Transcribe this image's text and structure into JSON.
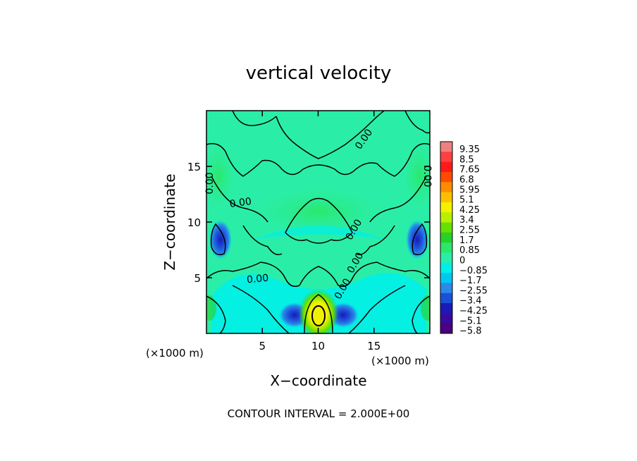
{
  "chart_data": {
    "type": "contour",
    "title": "vertical velocity",
    "xlabel": "X−coordinate",
    "ylabel": "Z−coordinate",
    "x_unit": "(×1000 m)",
    "y_unit": "(×1000 m)",
    "xlim": [
      0,
      20
    ],
    "ylim": [
      0,
      20
    ],
    "x_ticks": [
      "5",
      "10",
      "15"
    ],
    "y_ticks": [
      "5",
      "10",
      "15"
    ],
    "x_tick_values": [
      5,
      10,
      15
    ],
    "y_tick_values": [
      5,
      10,
      15
    ],
    "contour_interval_text": "CONTOUR INTERVAL = 2.000E+00",
    "contour_labels": [
      "0.00",
      "0.00",
      "0.00",
      "0.00",
      "0.00",
      "0.00",
      "0.00",
      "0.00"
    ],
    "colorbar": {
      "labels": [
        "9.35",
        "8.5",
        "7.65",
        "6.8",
        "5.95",
        "5.1",
        "4.25",
        "3.4",
        "2.55",
        "1.7",
        "0.85",
        "0",
        "−0.85",
        "−1.7",
        "−2.55",
        "−3.4",
        "−4.25",
        "−5.1",
        "−5.8"
      ],
      "colors": [
        "#f08080",
        "#ff4040",
        "#ff1a1a",
        "#ff4a00",
        "#ff8c00",
        "#ffbf00",
        "#f2f200",
        "#b8f000",
        "#66e000",
        "#2ad02a",
        "#2be86a",
        "#2aeea8",
        "#00f0e8",
        "#00c8f0",
        "#2a8ae8",
        "#1c4fd8",
        "#1a1ab8",
        "#3a0aa0",
        "#4a0080"
      ]
    },
    "features": [
      {
        "name": "updraft",
        "x": 10,
        "z": 1.5,
        "value": 5.1
      },
      {
        "name": "downdraft",
        "x": 8,
        "z": 1.5,
        "value": -3.4
      },
      {
        "name": "downdraft",
        "x": 12,
        "z": 1.5,
        "value": -3.4
      },
      {
        "name": "downdraft",
        "x": 1.2,
        "z": 8.3,
        "value": -2.55
      },
      {
        "name": "downdraft",
        "x": 18.8,
        "z": 8.3,
        "value": -2.55
      }
    ]
  }
}
